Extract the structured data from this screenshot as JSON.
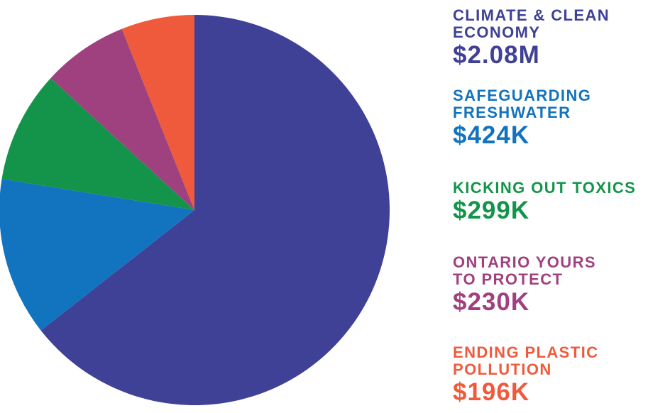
{
  "chart_data": {
    "type": "pie",
    "categories": [
      "CLIMATE & CLEAN\nECONOMY",
      "SAFEGUARDING\nFRESHWATER",
      "KICKING OUT TOXICS",
      "ONTARIO YOURS\nTO PROTECT",
      "ENDING PLASTIC\nPOLLUTION"
    ],
    "values": [
      2080000,
      424000,
      299000,
      230000,
      196000
    ],
    "value_labels": [
      "$2.08M",
      "$424K",
      "$299K",
      "$230K",
      "$196K"
    ],
    "colors": [
      "#3f4196",
      "#1273be",
      "#13944a",
      "#a0417f",
      "#f05a3c"
    ]
  }
}
